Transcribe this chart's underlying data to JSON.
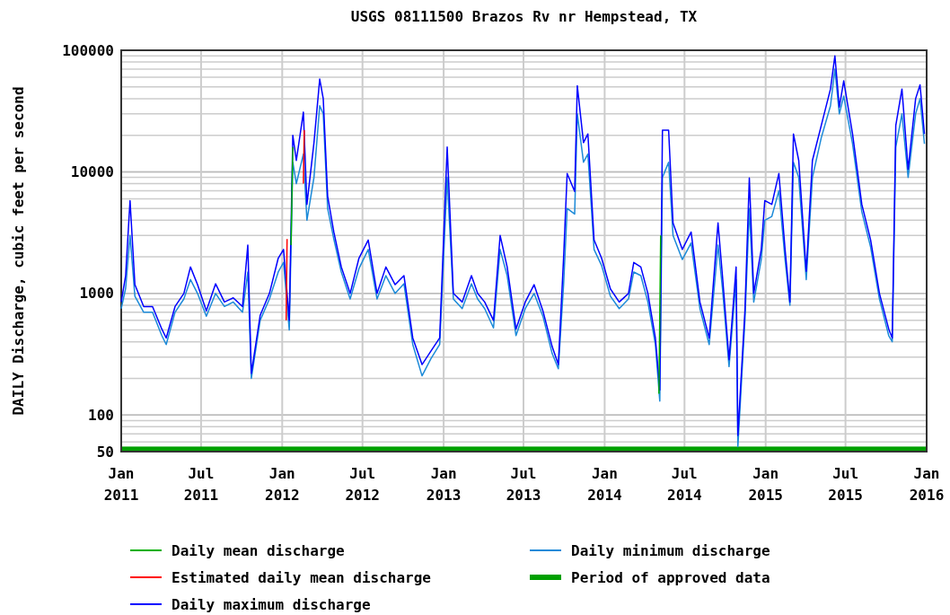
{
  "chart_data": {
    "type": "line",
    "title": "USGS 08111500 Brazos Rv nr Hempstead, TX",
    "ylabel": "DAILY Discharge, cubic feet per second",
    "log": "y",
    "grid": true,
    "legend": "bottom",
    "line_style": "solid",
    "xlim": [
      "2011-01-01",
      "2016-01-01"
    ],
    "xticks": [
      {
        "value": "2011-01-01",
        "label": "Jan 2011"
      },
      {
        "value": "2011-07-01",
        "label": "Jul 2011"
      },
      {
        "value": "2012-01-01",
        "label": "Jan 2012"
      },
      {
        "value": "2012-07-01",
        "label": "Jul 2012"
      },
      {
        "value": "2013-01-01",
        "label": "Jan 2013"
      },
      {
        "value": "2013-07-01",
        "label": "Jul 2013"
      },
      {
        "value": "2014-01-01",
        "label": "Jan 2014"
      },
      {
        "value": "2014-07-01",
        "label": "Jul 2014"
      },
      {
        "value": "2015-01-01",
        "label": "Jan 2015"
      },
      {
        "value": "2015-07-01",
        "label": "Jul 2015"
      },
      {
        "value": "2016-01-01",
        "label": "Jan 2016"
      }
    ],
    "ylim": [
      50,
      100000
    ],
    "yticks": [
      50,
      100,
      1000,
      10000,
      100000
    ],
    "bands": [
      {
        "axis": "y",
        "from": 50,
        "to": 55,
        "label": "Period of approved data",
        "color": "#00a000"
      }
    ],
    "series": [
      {
        "name": "Daily mean discharge",
        "color": "#00b000",
        "x": [
          "2012-01-21",
          "2012-01-25",
          "2013-01-01",
          "2014-05-04",
          "2014-05-08"
        ],
        "values": [
          2500,
          16000,
          null,
          150,
          3000
        ]
      },
      {
        "name": "Estimated daily mean discharge",
        "color": "#ff0000",
        "x": [
          "2012-01-10",
          "2012-01-12",
          "2012-02-01",
          "2012-02-18",
          "2012-02-20"
        ],
        "values": [
          600,
          2800,
          null,
          8000,
          22000
        ]
      },
      {
        "name": "Daily maximum discharge",
        "color": "#0000ff",
        "x": [
          "2011-01-01",
          "2011-01-11",
          "2011-01-21",
          "2011-02-01",
          "2011-02-21",
          "2011-03-13",
          "2011-04-03",
          "2011-04-13",
          "2011-05-03",
          "2011-05-23",
          "2011-06-07",
          "2011-06-23",
          "2011-07-13",
          "2011-08-03",
          "2011-08-23",
          "2011-09-12",
          "2011-10-03",
          "2011-10-15",
          "2011-10-23",
          "2011-11-12",
          "2011-12-03",
          "2011-12-23",
          "2012-01-04",
          "2012-01-17",
          "2012-01-25",
          "2012-02-02",
          "2012-02-18",
          "2012-02-26",
          "2012-03-13",
          "2012-03-26",
          "2012-04-03",
          "2012-04-13",
          "2012-04-27",
          "2012-05-14",
          "2012-06-03",
          "2012-06-23",
          "2012-07-14",
          "2012-08-03",
          "2012-08-23",
          "2012-09-13",
          "2012-10-03",
          "2012-10-23",
          "2012-11-13",
          "2012-12-03",
          "2012-12-23",
          "2013-01-09",
          "2013-01-23",
          "2013-02-12",
          "2013-03-05",
          "2013-03-19",
          "2013-04-04",
          "2013-04-24",
          "2013-05-09",
          "2013-05-25",
          "2013-06-14",
          "2013-07-05",
          "2013-07-25",
          "2013-08-14",
          "2013-09-04",
          "2013-09-18",
          "2013-09-30",
          "2013-10-08",
          "2013-10-25",
          "2013-10-31",
          "2013-11-14",
          "2013-11-24",
          "2013-12-08",
          "2013-12-25",
          "2014-01-14",
          "2014-02-03",
          "2014-02-24",
          "2014-03-08",
          "2014-03-24",
          "2014-04-09",
          "2014-04-26",
          "2014-05-06",
          "2014-05-12",
          "2014-05-26",
          "2014-06-05",
          "2014-06-26",
          "2014-07-16",
          "2014-08-05",
          "2014-08-26",
          "2014-09-15",
          "2014-09-25",
          "2014-10-10",
          "2014-10-26",
          "2014-10-30",
          "2014-11-15",
          "2014-11-25",
          "2014-12-05",
          "2014-12-22",
          "2014-12-30",
          "2015-01-15",
          "2015-01-31",
          "2015-02-14",
          "2015-02-25",
          "2015-03-05",
          "2015-03-17",
          "2015-04-03",
          "2015-04-17",
          "2015-05-07",
          "2015-05-28",
          "2015-06-07",
          "2015-06-17",
          "2015-06-27",
          "2015-07-17",
          "2015-08-07",
          "2015-08-27",
          "2015-09-16",
          "2015-10-07",
          "2015-10-15",
          "2015-10-23",
          "2015-11-06",
          "2015-11-20",
          "2015-12-07",
          "2015-12-17",
          "2015-12-27"
        ],
        "values": [
          850,
          1400,
          5800,
          1180,
          780,
          780,
          510,
          430,
          780,
          1000,
          1650,
          1180,
          720,
          1200,
          850,
          920,
          780,
          2500,
          220,
          660,
          1000,
          1950,
          2300,
          600,
          20000,
          12400,
          31000,
          5400,
          17400,
          58000,
          40000,
          6300,
          3200,
          1650,
          1000,
          1950,
          2750,
          1000,
          1650,
          1180,
          1400,
          430,
          260,
          335,
          430,
          16000,
          1000,
          850,
          1400,
          1000,
          850,
          600,
          3000,
          1650,
          510,
          850,
          1180,
          720,
          365,
          260,
          2000,
          9700,
          6900,
          51000,
          17400,
          20500,
          2750,
          1950,
          1090,
          850,
          1000,
          1800,
          1650,
          1000,
          430,
          160,
          22000,
          22000,
          3800,
          2300,
          3200,
          850,
          430,
          3800,
          1400,
          285,
          1650,
          68,
          720,
          8900,
          1000,
          2300,
          5800,
          5400,
          9700,
          2300,
          850,
          20500,
          12400,
          1520,
          12400,
          24000,
          48000,
          90000,
          34000,
          56000,
          20500,
          5400,
          2750,
          1000,
          510,
          430,
          24000,
          48000,
          10500,
          40000,
          52000,
          20500
        ]
      },
      {
        "name": "Daily minimum discharge",
        "color": "#1c8ad8",
        "x": [
          "2011-01-01",
          "2011-01-11",
          "2011-01-21",
          "2011-02-01",
          "2011-02-21",
          "2011-03-13",
          "2011-04-03",
          "2011-04-13",
          "2011-05-03",
          "2011-05-23",
          "2011-06-07",
          "2011-06-23",
          "2011-07-13",
          "2011-08-03",
          "2011-08-23",
          "2011-09-12",
          "2011-10-03",
          "2011-10-15",
          "2011-10-23",
          "2011-11-12",
          "2011-12-03",
          "2011-12-23",
          "2012-01-04",
          "2012-01-17",
          "2012-01-25",
          "2012-02-02",
          "2012-02-18",
          "2012-02-26",
          "2012-03-13",
          "2012-03-26",
          "2012-04-03",
          "2012-04-13",
          "2012-04-27",
          "2012-05-14",
          "2012-06-03",
          "2012-06-23",
          "2012-07-14",
          "2012-08-03",
          "2012-08-23",
          "2012-09-13",
          "2012-10-03",
          "2012-10-23",
          "2012-11-13",
          "2012-12-03",
          "2012-12-23",
          "2013-01-09",
          "2013-01-23",
          "2013-02-12",
          "2013-03-05",
          "2013-03-19",
          "2013-04-04",
          "2013-04-24",
          "2013-05-09",
          "2013-05-25",
          "2013-06-14",
          "2013-07-05",
          "2013-07-25",
          "2013-08-14",
          "2013-09-04",
          "2013-09-18",
          "2013-09-30",
          "2013-10-08",
          "2013-10-25",
          "2013-10-31",
          "2013-11-14",
          "2013-11-24",
          "2013-12-08",
          "2013-12-25",
          "2014-01-14",
          "2014-02-03",
          "2014-02-24",
          "2014-03-08",
          "2014-03-24",
          "2014-04-09",
          "2014-04-26",
          "2014-05-06",
          "2014-05-12",
          "2014-05-26",
          "2014-06-05",
          "2014-06-26",
          "2014-07-16",
          "2014-08-05",
          "2014-08-26",
          "2014-09-15",
          "2014-09-25",
          "2014-10-10",
          "2014-10-26",
          "2014-10-30",
          "2014-11-15",
          "2014-11-25",
          "2014-12-05",
          "2014-12-22",
          "2014-12-30",
          "2015-01-15",
          "2015-01-31",
          "2015-02-14",
          "2015-02-25",
          "2015-03-05",
          "2015-03-17",
          "2015-04-03",
          "2015-04-17",
          "2015-05-07",
          "2015-05-28",
          "2015-06-07",
          "2015-06-17",
          "2015-06-27",
          "2015-07-17",
          "2015-08-07",
          "2015-08-27",
          "2015-09-16",
          "2015-10-07",
          "2015-10-15",
          "2015-10-23",
          "2015-11-06",
          "2015-11-20",
          "2015-12-07",
          "2015-12-17",
          "2015-12-27"
        ],
        "values": [
          750,
          1100,
          3000,
          950,
          700,
          700,
          450,
          380,
          700,
          900,
          1300,
          1000,
          650,
          1000,
          780,
          850,
          700,
          1500,
          200,
          600,
          900,
          1500,
          1800,
          500,
          12000,
          8000,
          14000,
          4000,
          9000,
          35000,
          30000,
          5000,
          2800,
          1500,
          900,
          1600,
          2300,
          900,
          1400,
          1000,
          1200,
          380,
          210,
          290,
          380,
          9000,
          900,
          750,
          1200,
          900,
          750,
          520,
          2300,
          1400,
          450,
          750,
          1000,
          650,
          320,
          240,
          1200,
          5000,
          4500,
          30000,
          12000,
          14000,
          2300,
          1700,
          950,
          750,
          900,
          1500,
          1400,
          850,
          380,
          130,
          9000,
          12000,
          3000,
          1900,
          2600,
          750,
          380,
          2500,
          1100,
          250,
          1300,
          55,
          600,
          5000,
          850,
          1900,
          4000,
          4300,
          7000,
          1900,
          800,
          12000,
          9000,
          1300,
          9000,
          19000,
          35000,
          70000,
          30000,
          42000,
          17000,
          4700,
          2400,
          900,
          450,
          400,
          16000,
          30000,
          9000,
          30000,
          40000,
          17000
        ]
      }
    ]
  }
}
